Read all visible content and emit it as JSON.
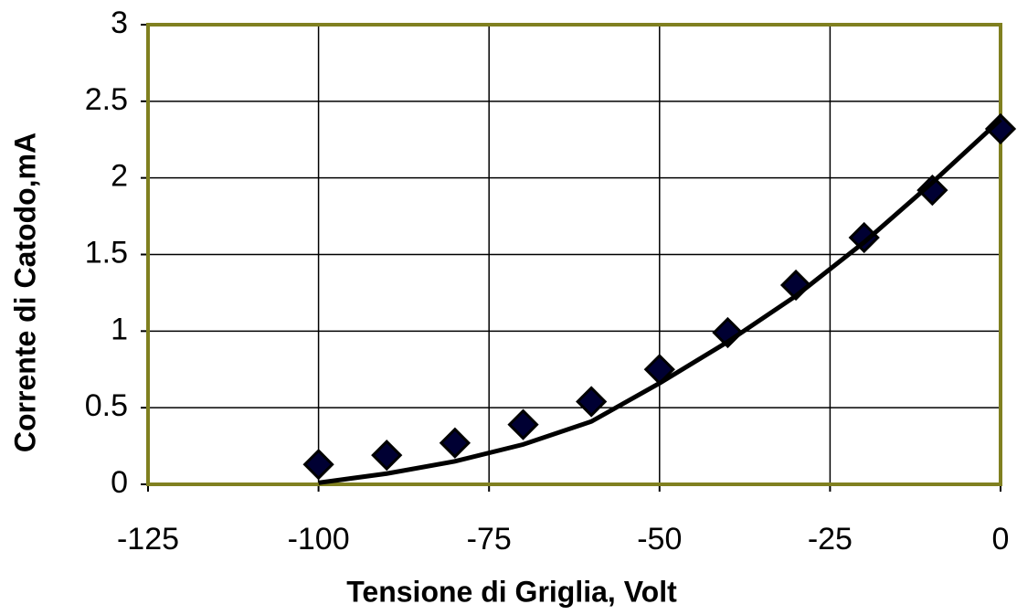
{
  "chart_data": {
    "type": "scatter",
    "x_label": "Tensione di Griglia, Volt",
    "y_label": "Corrente di Catodo,mA",
    "x": [
      -100,
      -90,
      -80,
      -70,
      -60,
      -50,
      -40,
      -30,
      -20,
      -10,
      0
    ],
    "series": [
      {
        "style": "markers",
        "color": "#000033",
        "values": [
          0.13,
          0.19,
          0.27,
          0.39,
          0.54,
          0.75,
          0.99,
          1.3,
          1.61,
          1.92,
          2.32
        ]
      },
      {
        "style": "line",
        "color": "#000000",
        "values": [
          0.01,
          0.07,
          0.15,
          0.26,
          0.41,
          0.66,
          0.93,
          1.23,
          1.58,
          1.97,
          2.38
        ]
      }
    ],
    "xlim": [
      -125,
      0
    ],
    "xticks": [
      -125,
      -100,
      -75,
      -50,
      -25,
      0
    ],
    "ylim": [
      0,
      3
    ],
    "yticks": [
      0,
      0.5,
      1,
      1.5,
      2,
      2.5,
      3
    ],
    "grid": true
  }
}
